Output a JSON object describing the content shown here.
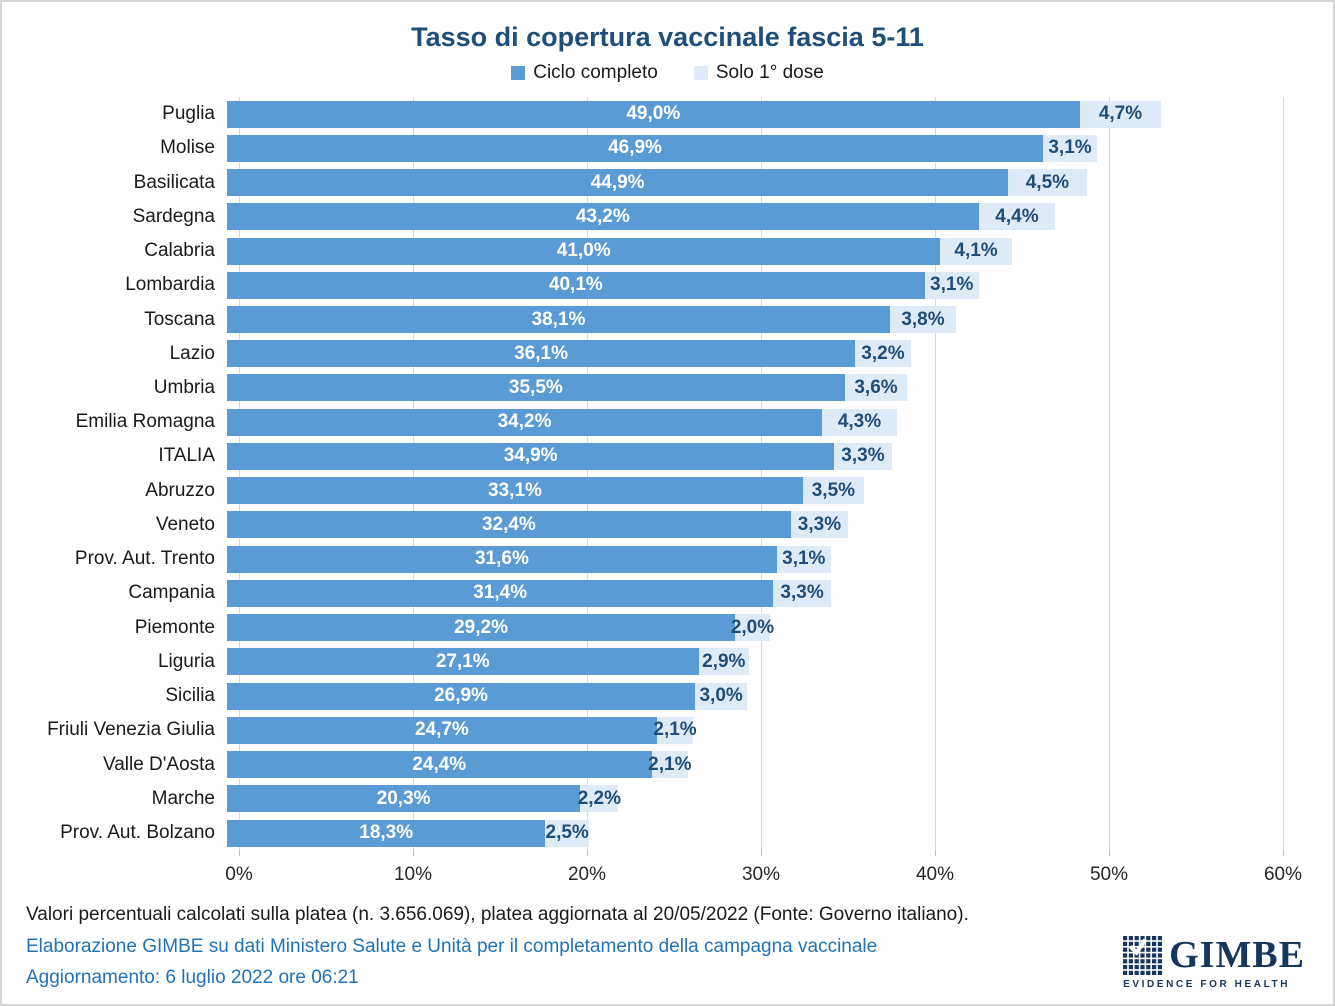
{
  "colors": {
    "complete": "#5B9BD5",
    "first_dose": "#DEEAF6",
    "navy": "#1F4E79",
    "footer_blue": "#2173B8",
    "gridline": "#D9D9D9"
  },
  "chart_data": {
    "type": "bar",
    "orientation": "horizontal",
    "stacked": true,
    "title": "Tasso di copertura vaccinale fascia 5-11",
    "legend_position": "top",
    "grid": "vertical",
    "x_axis": {
      "min": 0,
      "max": 60,
      "tick_values": [
        0,
        10,
        20,
        30,
        40,
        50,
        60
      ],
      "tick_labels": [
        "0%",
        "10%",
        "20%",
        "30%",
        "40%",
        "50%",
        "60%"
      ]
    },
    "categories": [
      "Puglia",
      "Molise",
      "Basilicata",
      "Sardegna",
      "Calabria",
      "Lombardia",
      "Toscana",
      "Lazio",
      "Umbria",
      "Emilia Romagna",
      "ITALIA",
      "Abruzzo",
      "Veneto",
      "Prov. Aut. Trento",
      "Campania",
      "Piemonte",
      "Liguria",
      "Sicilia",
      "Friuli Venezia Giulia",
      "Valle D'Aosta",
      "Marche",
      "Prov. Aut. Bolzano"
    ],
    "series": [
      {
        "name": "Ciclo completo",
        "values": [
          49.0,
          46.9,
          44.9,
          43.2,
          41.0,
          40.1,
          38.1,
          36.1,
          35.5,
          34.2,
          34.9,
          33.1,
          32.4,
          31.6,
          31.4,
          29.2,
          27.1,
          26.9,
          24.7,
          24.4,
          20.3,
          18.3
        ],
        "labels": [
          "49,0%",
          "46,9%",
          "44,9%",
          "43,2%",
          "41,0%",
          "40,1%",
          "38,1%",
          "36,1%",
          "35,5%",
          "34,2%",
          "34,9%",
          "33,1%",
          "32,4%",
          "31,6%",
          "31,4%",
          "29,2%",
          "27,1%",
          "26,9%",
          "24,7%",
          "24,4%",
          "20,3%",
          "18,3%"
        ]
      },
      {
        "name": "Solo 1° dose",
        "values": [
          4.7,
          3.1,
          4.5,
          4.4,
          4.1,
          3.1,
          3.8,
          3.2,
          3.6,
          4.3,
          3.3,
          3.5,
          3.3,
          3.1,
          3.3,
          2.0,
          2.9,
          3.0,
          2.1,
          2.1,
          2.2,
          2.5
        ],
        "labels": [
          "4,7%",
          "3,1%",
          "4,5%",
          "4,4%",
          "4,1%",
          "3,1%",
          "3,8%",
          "3,2%",
          "3,6%",
          "4,3%",
          "3,3%",
          "3,5%",
          "3,3%",
          "3,1%",
          "3,3%",
          "2,0%",
          "2,9%",
          "3,0%",
          "2,1%",
          "2,1%",
          "2,2%",
          "2,5%"
        ]
      }
    ]
  },
  "footer": {
    "footnote": "Valori percentuali calcolati sulla platea (n. 3.656.069), platea aggiornata al 20/05/2022 (Fonte: Governo italiano).",
    "credit": "Elaborazione GIMBE su dati Ministero Salute e Unità per il completamento della campagna vaccinale",
    "update": "Aggiornamento: 6 luglio 2022 ore 06:21"
  },
  "logo": {
    "name": "GIMBE",
    "tagline": "EVIDENCE FOR HEALTH"
  }
}
